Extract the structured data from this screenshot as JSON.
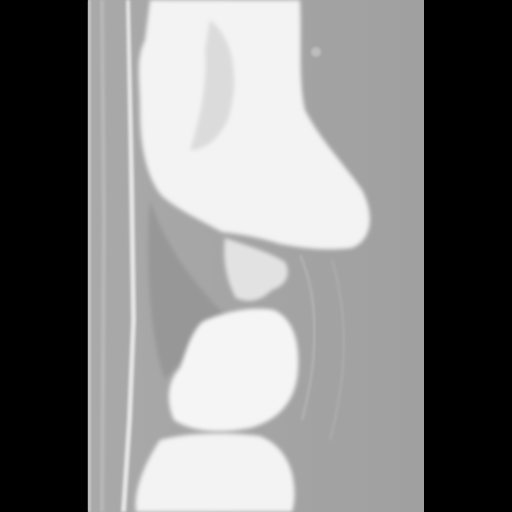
{
  "image": {
    "kind": "grayscale-sagittal-ct-slice",
    "background_color": "#000000",
    "tissue_color": "#a6a6a6",
    "bright_color": "#f4f4f4"
  }
}
